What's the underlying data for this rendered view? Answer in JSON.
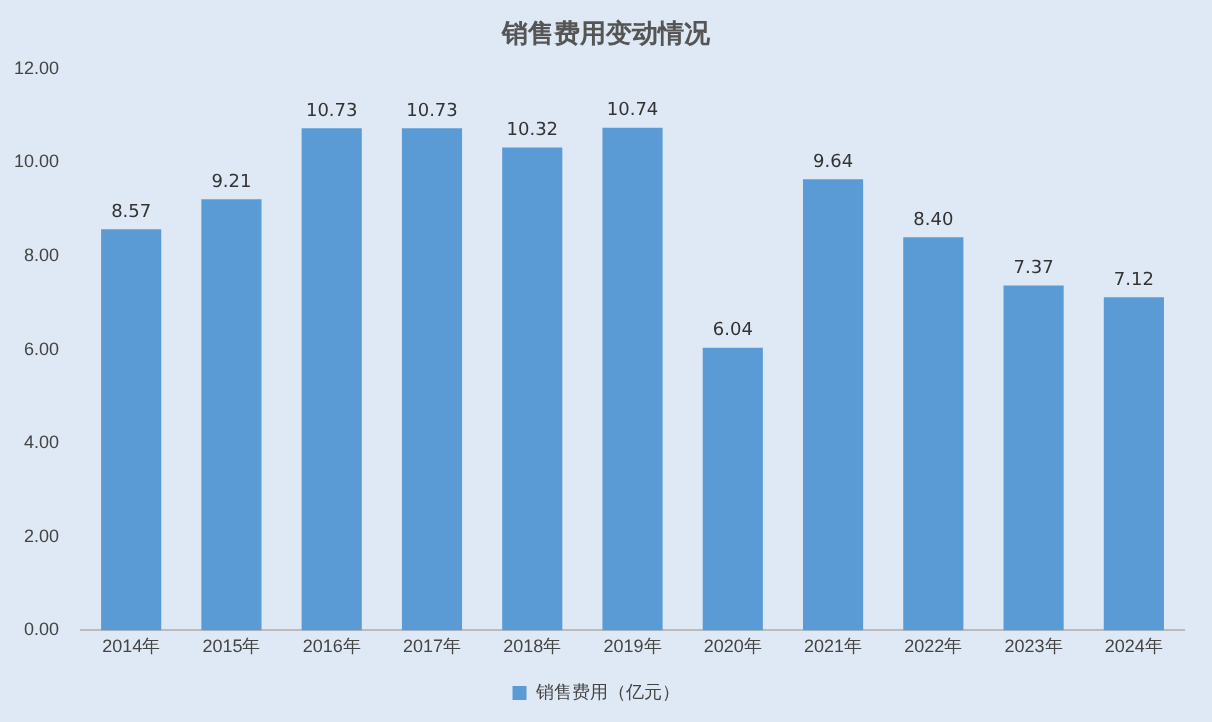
{
  "chart_data": {
    "type": "bar",
    "title": "销售费用变动情况",
    "categories": [
      "2014年",
      "2015年",
      "2016年",
      "2017年",
      "2018年",
      "2019年",
      "2020年",
      "2021年",
      "2022年",
      "2023年",
      "2024年"
    ],
    "series": [
      {
        "name": "销售费用（亿元）",
        "color": "#5b9bd5",
        "values": [
          8.57,
          9.21,
          10.73,
          10.73,
          10.32,
          10.74,
          6.04,
          9.64,
          8.4,
          7.37,
          7.12
        ],
        "value_labels": [
          "8.57",
          "9.21",
          "10.73",
          "10.73",
          "10.32",
          "10.74",
          "6.04",
          "9.64",
          "8.40",
          "7.37",
          "7.12"
        ]
      }
    ],
    "ylim": [
      0,
      12
    ],
    "yticks": [
      {
        "value": 0,
        "label": "0.00"
      },
      {
        "value": 2,
        "label": "2.00"
      },
      {
        "value": 4,
        "label": "4.00"
      },
      {
        "value": 6,
        "label": "6.00"
      },
      {
        "value": 8,
        "label": "8.00"
      },
      {
        "value": 10,
        "label": "10.00"
      },
      {
        "value": 12,
        "label": "12.00"
      }
    ],
    "grid": false,
    "legend": "bottom"
  }
}
